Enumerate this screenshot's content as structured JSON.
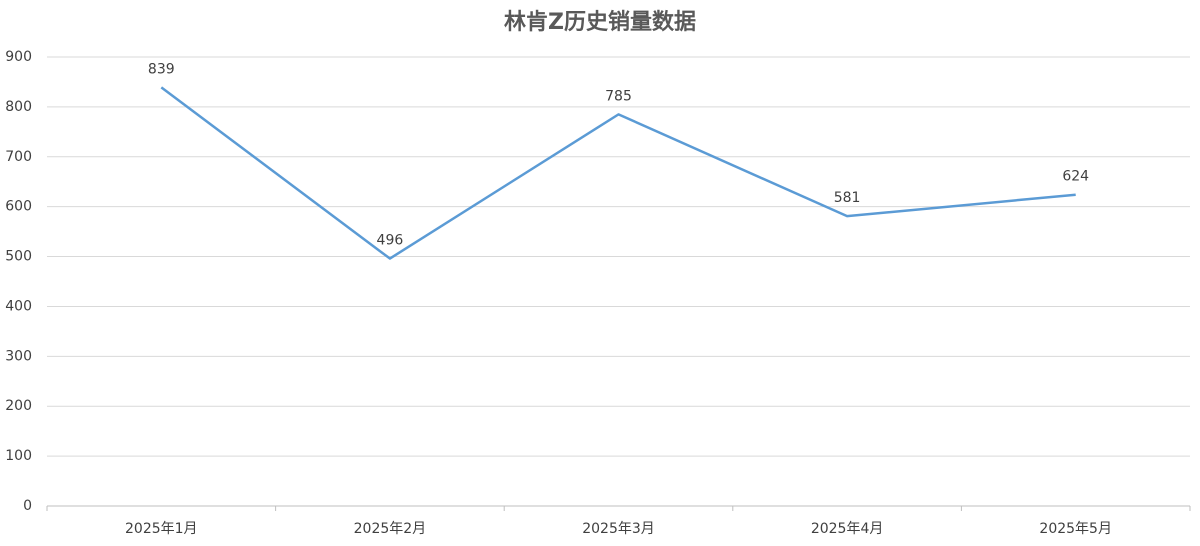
{
  "chart_data": {
    "type": "line",
    "title": "林肯Z历史销量数据",
    "categories": [
      "2025年1月",
      "2025年2月",
      "2025年3月",
      "2025年4月",
      "2025年5月"
    ],
    "values": [
      839,
      496,
      785,
      581,
      624
    ],
    "color": "#5b9bd5",
    "ylim": [
      0,
      900
    ],
    "yticks": [
      0,
      100,
      200,
      300,
      400,
      500,
      600,
      700,
      800,
      900
    ],
    "grid": true
  }
}
